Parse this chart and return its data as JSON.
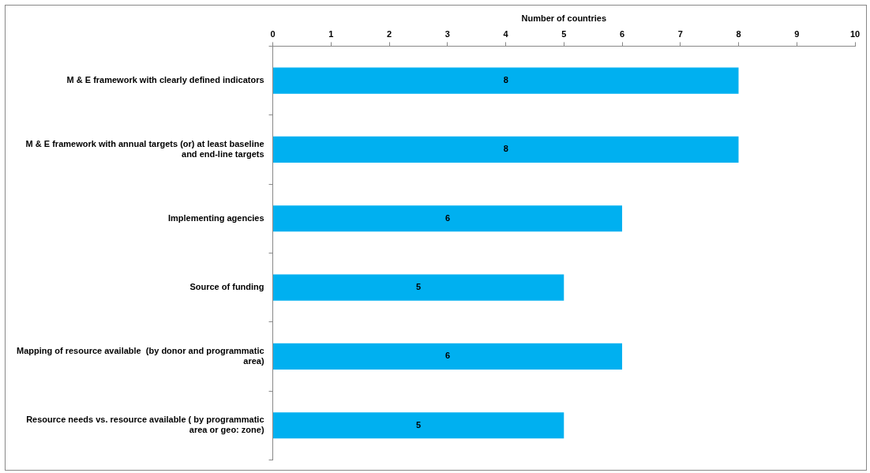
{
  "chart_data": {
    "type": "bar",
    "orientation": "horizontal",
    "xlabel": "Number of countries",
    "categories": [
      "M & E framework with clearly defined indicators",
      "M & E framework with annual targets (or) at least baseline and end-line targets",
      "Implementing agencies",
      "Source of funding",
      "Mapping of resource available  (by donor and programmatic area)",
      "Resource needs vs. resource available ( by programmatic area or geo: zone)"
    ],
    "values": [
      8,
      8,
      6,
      5,
      6,
      5
    ],
    "color": "#00b0f0",
    "xlim": [
      0,
      10
    ],
    "xticks": [
      0,
      1,
      2,
      3,
      4,
      5,
      6,
      7,
      8,
      9,
      10
    ],
    "data_labels": true,
    "grid": false,
    "legend": false
  }
}
